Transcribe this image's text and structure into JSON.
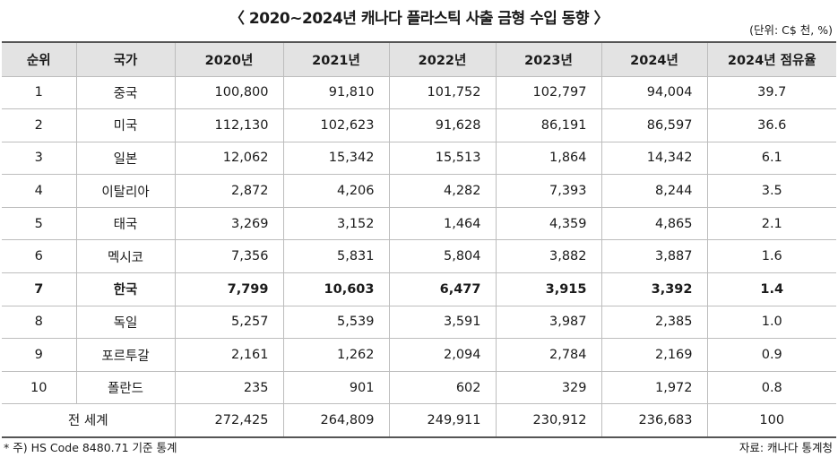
{
  "title": "〈 2020~2024년 캐나다 플라스틱 사출 금형 수입 동향 〉",
  "unit": "(단위: C$ 천, %)",
  "headers": [
    "순위",
    "국가",
    "2020년",
    "2021년",
    "2022년",
    "2023년",
    "2024년",
    "2024년 점유율"
  ],
  "rows": [
    {
      "rank": "1",
      "country": "중국",
      "y2020": "100,800",
      "y2021": "91,810",
      "y2022": "101,752",
      "y2023": "102,797",
      "y2024": "94,004",
      "share": "39.7"
    },
    {
      "rank": "2",
      "country": "미국",
      "y2020": "112,130",
      "y2021": "102,623",
      "y2022": "91,628",
      "y2023": "86,191",
      "y2024": "86,597",
      "share": "36.6"
    },
    {
      "rank": "3",
      "country": "일본",
      "y2020": "12,062",
      "y2021": "15,342",
      "y2022": "15,513",
      "y2023": "1,864",
      "y2024": "14,342",
      "share": "6.1"
    },
    {
      "rank": "4",
      "country": "이탈리아",
      "y2020": "2,872",
      "y2021": "4,206",
      "y2022": "4,282",
      "y2023": "7,393",
      "y2024": "8,244",
      "share": "3.5"
    },
    {
      "rank": "5",
      "country": "태국",
      "y2020": "3,269",
      "y2021": "3,152",
      "y2022": "1,464",
      "y2023": "4,359",
      "y2024": "4,865",
      "share": "2.1"
    },
    {
      "rank": "6",
      "country": "멕시코",
      "y2020": "7,356",
      "y2021": "5,831",
      "y2022": "5,804",
      "y2023": "3,882",
      "y2024": "3,887",
      "share": "1.6"
    },
    {
      "rank": "7",
      "country": "한국",
      "y2020": "7,799",
      "y2021": "10,603",
      "y2022": "6,477",
      "y2023": "3,915",
      "y2024": "3,392",
      "share": "1.4"
    },
    {
      "rank": "8",
      "country": "독일",
      "y2020": "5,257",
      "y2021": "5,539",
      "y2022": "3,591",
      "y2023": "3,987",
      "y2024": "2,385",
      "share": "1.0"
    },
    {
      "rank": "9",
      "country": "포르투갈",
      "y2020": "2,161",
      "y2021": "1,262",
      "y2022": "2,094",
      "y2023": "2,784",
      "y2024": "2,169",
      "share": "0.9"
    },
    {
      "rank": "10",
      "country": "폴란드",
      "y2020": "235",
      "y2021": "901",
      "y2022": "602",
      "y2023": "329",
      "y2024": "1,972",
      "share": "0.8"
    }
  ],
  "total": {
    "label": "전 세계",
    "y2020": "272,425",
    "y2021": "264,809",
    "y2022": "249,911",
    "y2023": "230,912",
    "y2024": "236,683",
    "share": "100"
  },
  "footnote": "* 주) HS Code 8480.71 기준 통계",
  "source": "자료: 캐나다 통계청"
}
